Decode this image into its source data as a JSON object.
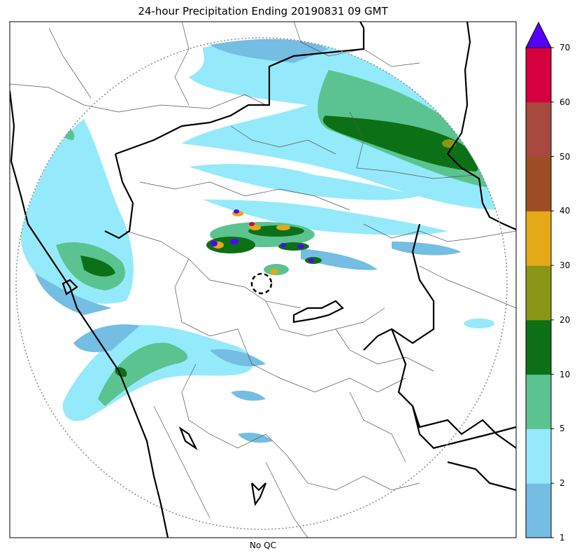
{
  "title": "24-hour Precipitation Ending 20190831 09 GMT",
  "xlabel": "No QC",
  "colorbar": {
    "ticks": [
      "1",
      "2",
      "5",
      "10",
      "20",
      "30",
      "40",
      "50",
      "60",
      "70"
    ],
    "colors": [
      "#74bde3",
      "#94eafa",
      "#5ac38f",
      "#0c7017",
      "#8c9616",
      "#e6a817",
      "#9e4d25",
      "#a8483e",
      "#d6003f"
    ],
    "extend_color": "#5500ff"
  },
  "colors": {
    "radar_ring": "#888888",
    "border_major": "#000000",
    "border_minor": "#555555"
  }
}
